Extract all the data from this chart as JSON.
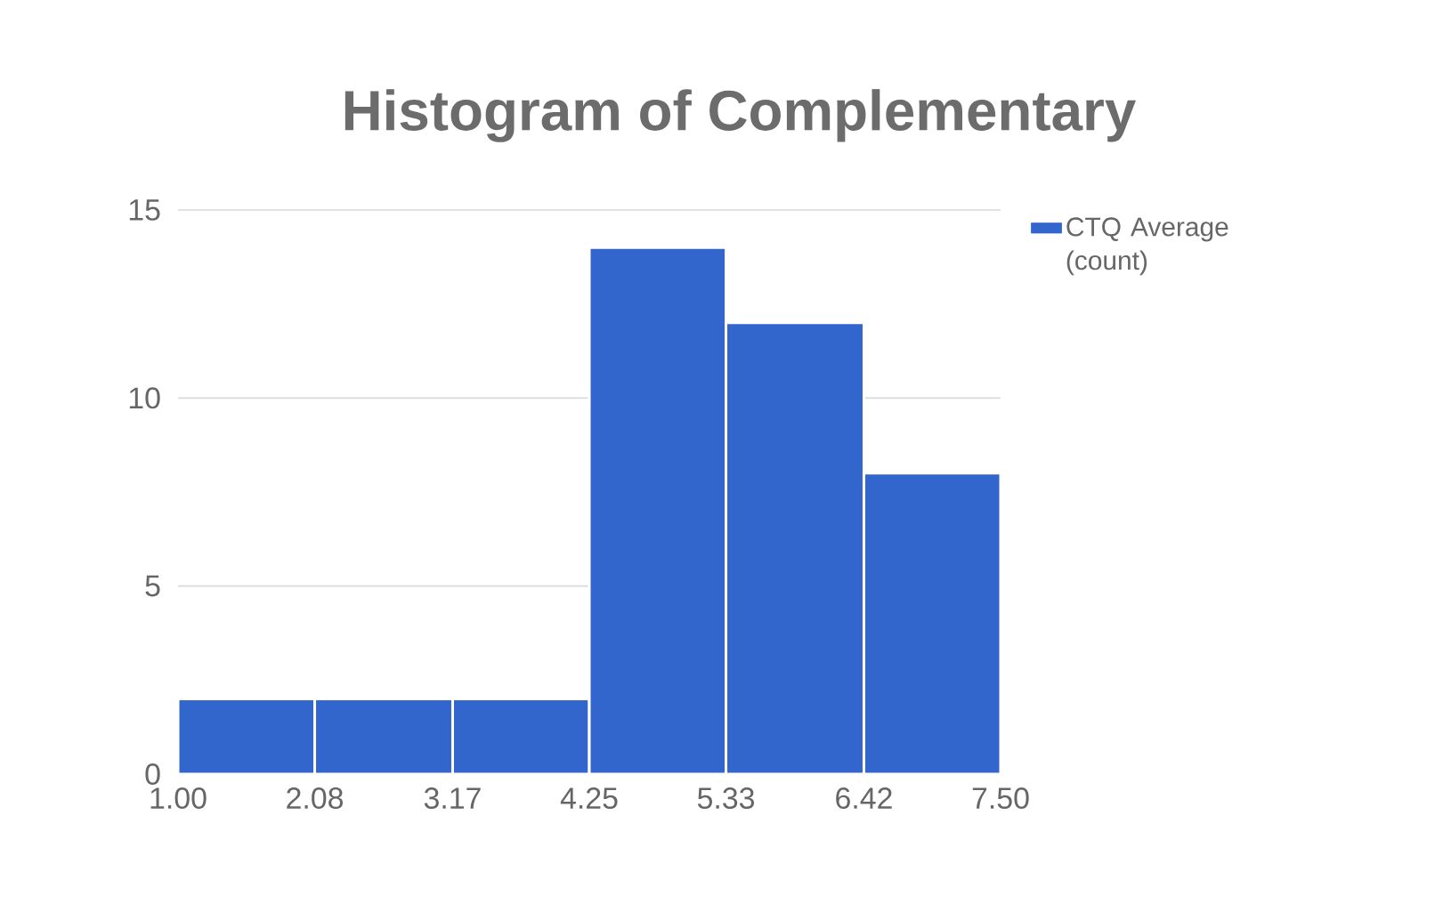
{
  "chart_data": {
    "type": "histogram",
    "title": "Histogram of Complementary",
    "bins": [
      1.0,
      2.08,
      3.17,
      4.25,
      5.33,
      6.42,
      7.5
    ],
    "series": [
      {
        "name": "CTQ Average (count)",
        "color": "#3366cc",
        "values": [
          2,
          2,
          2,
          14,
          12,
          8
        ]
      }
    ],
    "xlim": [
      1.0,
      7.5
    ],
    "xticks": [
      {
        "value": 1.0,
        "label": "1.00"
      },
      {
        "value": 2.08,
        "label": "2.08"
      },
      {
        "value": 3.17,
        "label": "3.17"
      },
      {
        "value": 4.25,
        "label": "4.25"
      },
      {
        "value": 5.33,
        "label": "5.33"
      },
      {
        "value": 6.42,
        "label": "6.42"
      },
      {
        "value": 7.5,
        "label": "7.50"
      }
    ],
    "ylim": [
      0,
      15
    ],
    "yticks": [
      0,
      5,
      10,
      15
    ],
    "grid": "y",
    "legend": "top right"
  }
}
